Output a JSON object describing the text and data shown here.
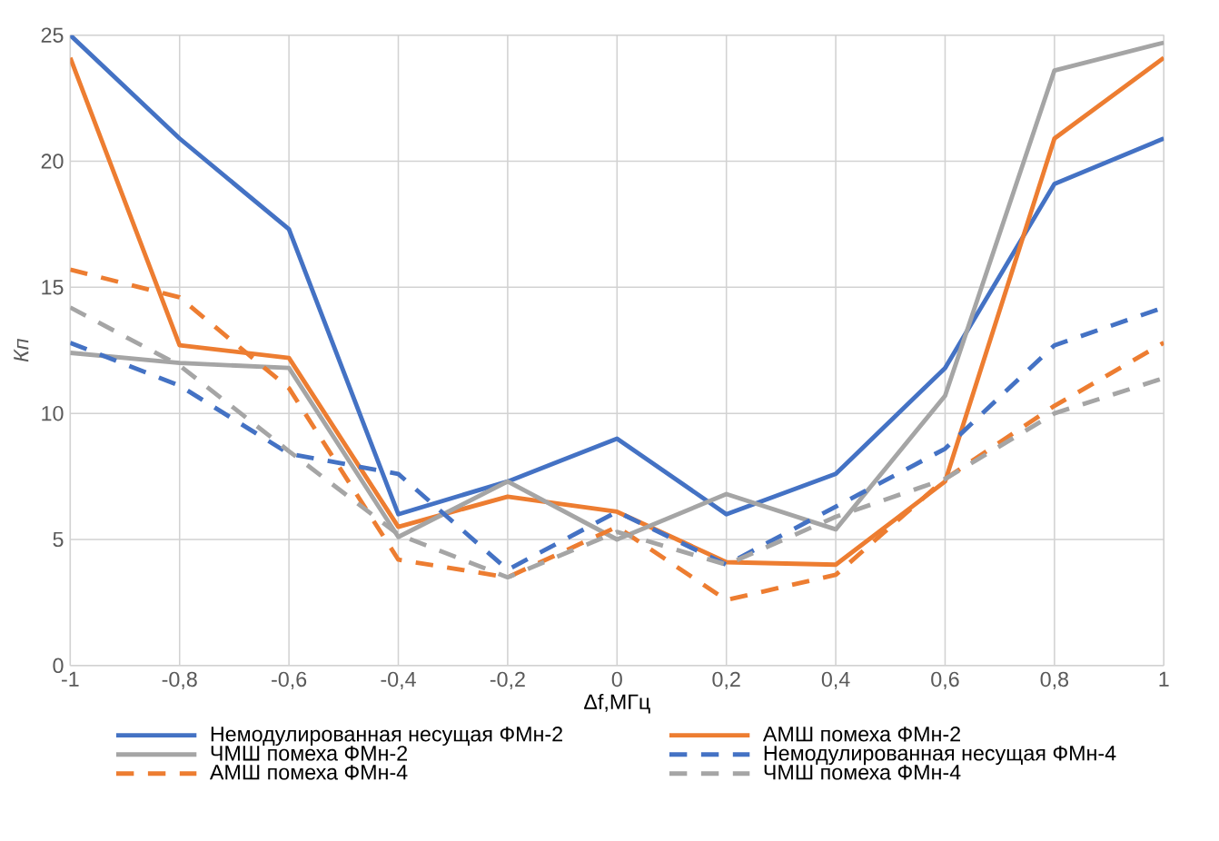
{
  "chart_data": {
    "type": "line",
    "xlabel": "Δf,МГц",
    "ylabel": "Кп",
    "x": [
      -1,
      -0.8,
      -0.6,
      -0.4,
      -0.2,
      0,
      0.2,
      0.4,
      0.6,
      0.8,
      1
    ],
    "xlim": [
      -1,
      1
    ],
    "xticks": [
      {
        "value": -1,
        "label": "-1"
      },
      {
        "value": -0.8,
        "label": "-0,8"
      },
      {
        "value": -0.6,
        "label": "-0,6"
      },
      {
        "value": -0.4,
        "label": "-0,4"
      },
      {
        "value": -0.2,
        "label": "-0,2"
      },
      {
        "value": 0,
        "label": "0"
      },
      {
        "value": 0.2,
        "label": "0,2"
      },
      {
        "value": 0.4,
        "label": "0,4"
      },
      {
        "value": 0.6,
        "label": "0,6"
      },
      {
        "value": 0.8,
        "label": "0,8"
      },
      {
        "value": 1,
        "label": "1"
      }
    ],
    "ylim": [
      0,
      25
    ],
    "yticks": [
      0,
      5,
      10,
      15,
      20,
      25
    ],
    "grid": true,
    "legend": "bottom",
    "marker": "none",
    "series": [
      {
        "name": "Немодулированная несущая ФМн-2",
        "color": "#4472c4",
        "line_style": "solid",
        "values": [
          25,
          20.9,
          17.3,
          6.0,
          7.3,
          9.0,
          6.0,
          7.6,
          11.8,
          19.1,
          20.9
        ]
      },
      {
        "name": "АМШ помеха ФМн-2",
        "color": "#ed7d31",
        "line_style": "solid",
        "values": [
          24.1,
          12.7,
          12.2,
          5.5,
          6.7,
          6.1,
          4.1,
          4.0,
          7.3,
          20.9,
          24.1
        ]
      },
      {
        "name": "ЧМШ помеха ФМн-2",
        "color": "#a5a5a5",
        "line_style": "solid",
        "values": [
          12.4,
          12.0,
          11.8,
          5.1,
          7.3,
          5.0,
          6.8,
          5.4,
          10.7,
          23.6,
          24.7
        ]
      },
      {
        "name": "Немодулированная несущая ФМн-4",
        "color": "#4472c4",
        "line_style": "dashed",
        "values": [
          12.8,
          11.1,
          8.4,
          7.6,
          3.8,
          6.1,
          4.0,
          6.3,
          8.6,
          12.7,
          14.2
        ]
      },
      {
        "name": "АМШ помеха ФМн-4",
        "color": "#ed7d31",
        "line_style": "dashed",
        "values": [
          15.7,
          14.6,
          11.0,
          4.2,
          3.5,
          5.5,
          2.6,
          3.6,
          7.4,
          10.3,
          12.8
        ]
      },
      {
        "name": "ЧМШ помеха ФМн-4",
        "color": "#a5a5a5",
        "line_style": "dashed",
        "values": [
          14.2,
          11.9,
          8.5,
          5.2,
          3.5,
          5.3,
          4.0,
          5.9,
          7.4,
          10.0,
          11.4
        ]
      }
    ]
  }
}
